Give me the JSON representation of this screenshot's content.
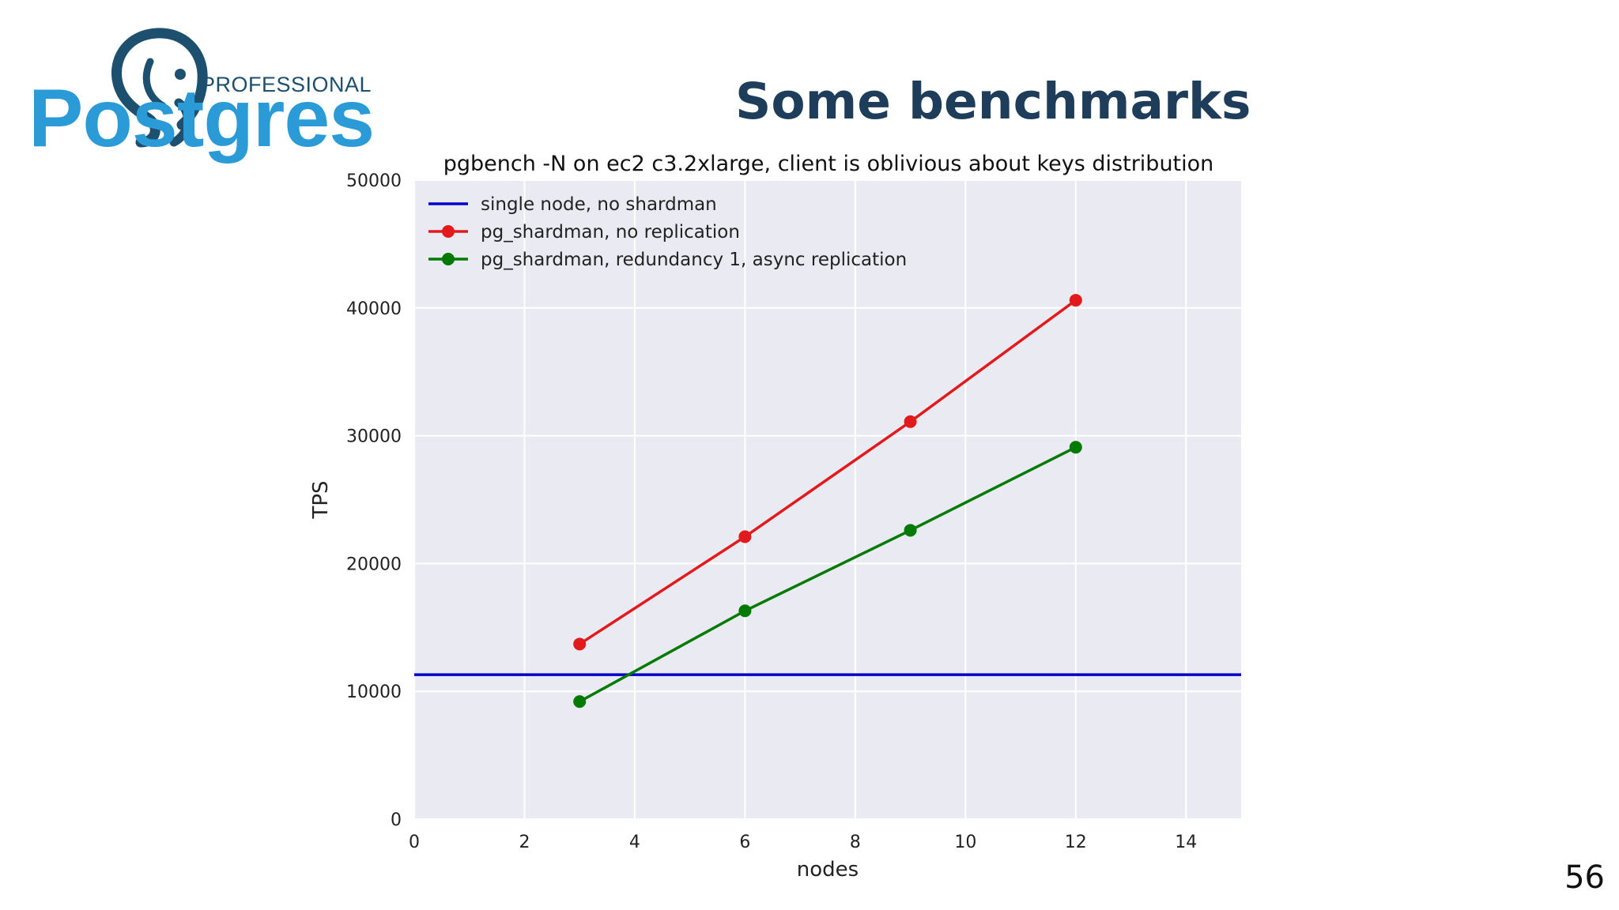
{
  "slide": {
    "title": "Some benchmarks",
    "page_number": "56"
  },
  "logo": {
    "word": "Postgres",
    "tagline": "PROFESSIONAL",
    "colors": {
      "word": "#2a9bd6",
      "elephant": "#1d4f6e"
    }
  },
  "chart_data": {
    "type": "line",
    "title": "pgbench -N on ec2 c3.2xlarge, client is oblivious about keys distribution",
    "xlabel": "nodes",
    "ylabel": "TPS",
    "xlim": [
      0,
      15
    ],
    "ylim": [
      0,
      50000
    ],
    "x_ticks": [
      0,
      2,
      4,
      6,
      8,
      10,
      12,
      14
    ],
    "y_ticks": [
      0,
      10000,
      20000,
      30000,
      40000,
      50000
    ],
    "grid": true,
    "legend_position": "top-left",
    "series": [
      {
        "name": "single node, no shardman",
        "color": "#0000cc",
        "marker": "none",
        "kind": "hline",
        "y": 11300
      },
      {
        "name": "pg_shardman, no replication",
        "color": "#e31a1c",
        "marker": "circle",
        "x": [
          3,
          6,
          9,
          12
        ],
        "y": [
          13700,
          22100,
          31100,
          40600
        ]
      },
      {
        "name": "pg_shardman, redundancy 1, async replication",
        "color": "#007a00",
        "marker": "circle",
        "x": [
          3,
          6,
          9,
          12
        ],
        "y": [
          9200,
          16300,
          22600,
          29100
        ]
      }
    ]
  }
}
